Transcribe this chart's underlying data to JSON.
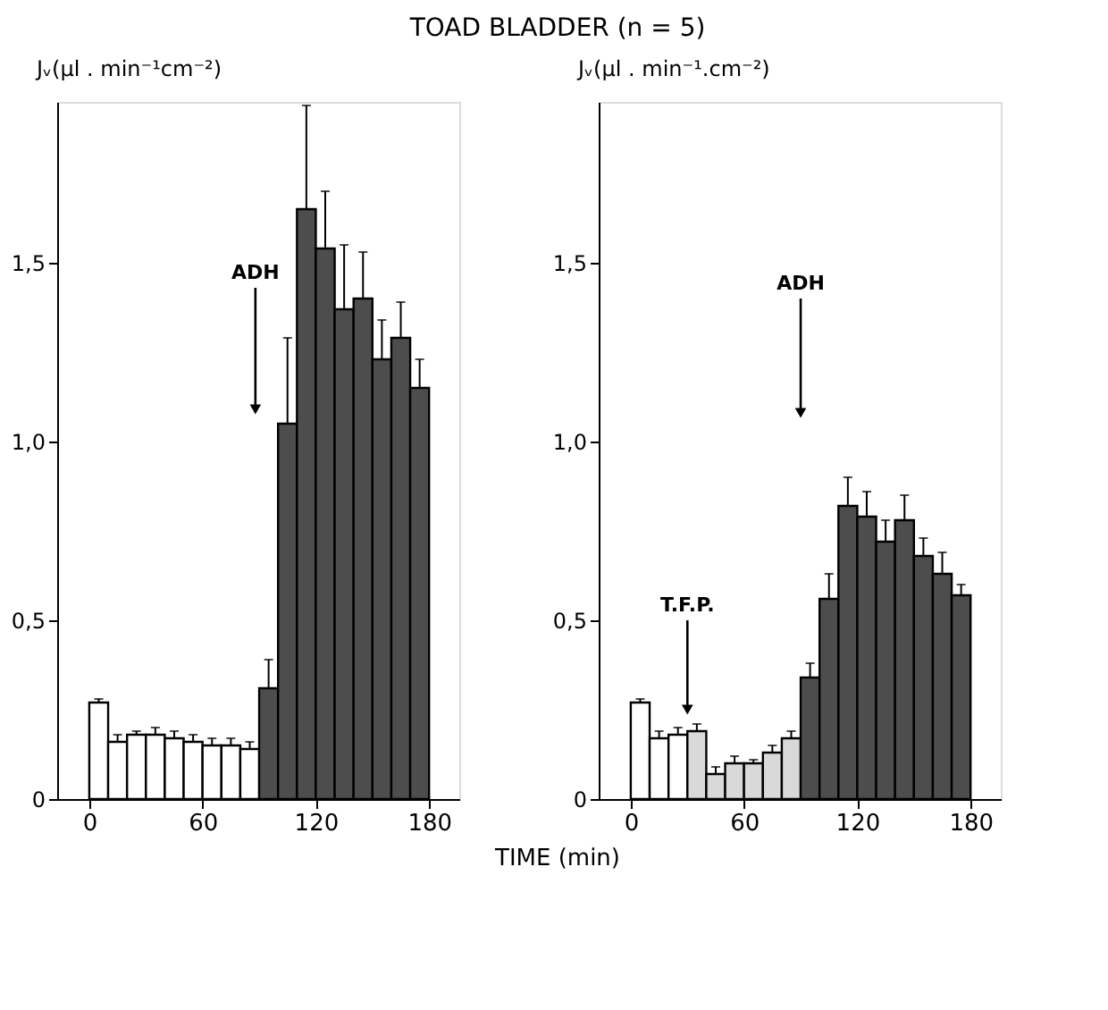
{
  "chart_data": [
    {
      "type": "bar",
      "title": "TOAD BLADDER (n = 5)",
      "xlabel": "TIME (min)",
      "ylabel": "Jᵥ(µl . min⁻¹cm⁻²)",
      "x": [
        5,
        15,
        25,
        35,
        45,
        55,
        65,
        75,
        85,
        95,
        105,
        115,
        125,
        135,
        145,
        155,
        165,
        175
      ],
      "values": [
        0.27,
        0.16,
        0.18,
        0.18,
        0.17,
        0.16,
        0.15,
        0.15,
        0.14,
        0.31,
        1.05,
        1.65,
        1.54,
        1.37,
        1.4,
        1.23,
        1.29,
        1.15
      ],
      "errors": [
        [
          0.27,
          0.28
        ],
        [
          0.16,
          0.18
        ],
        [
          0.18,
          0.19
        ],
        [
          0.18,
          0.2
        ],
        [
          0.17,
          0.19
        ],
        [
          0.16,
          0.18
        ],
        [
          0.15,
          0.17
        ],
        [
          0.15,
          0.17
        ],
        [
          0.14,
          0.16
        ],
        [
          0.31,
          0.39
        ],
        [
          1.05,
          1.29
        ],
        [
          1.65,
          1.94
        ],
        [
          1.54,
          1.7
        ],
        [
          1.37,
          1.55
        ],
        [
          1.4,
          1.53
        ],
        [
          1.23,
          1.34
        ],
        [
          1.29,
          1.39
        ],
        [
          1.15,
          1.23
        ]
      ],
      "colors": [
        "#ffffff",
        "#ffffff",
        "#ffffff",
        "#ffffff",
        "#ffffff",
        "#ffffff",
        "#ffffff",
        "#ffffff",
        "#ffffff",
        "#4d4d4d",
        "#4d4d4d",
        "#4d4d4d",
        "#4d4d4d",
        "#4d4d4d",
        "#4d4d4d",
        "#4d4d4d",
        "#4d4d4d",
        "#4d4d4d"
      ],
      "annotations": [
        "ADH"
      ],
      "xlim": [
        -17,
        196
      ],
      "xticks": [
        0,
        60,
        120,
        180
      ],
      "ylim": [
        0,
        1.95
      ],
      "yticks": [
        0,
        {
          "value": 0.5,
          "label": "0,5"
        },
        {
          "value": 1.0,
          "label": "1,0"
        },
        {
          "value": 1.5,
          "label": "1,5"
        }
      ],
      "grid": false
    },
    {
      "type": "bar",
      "ylabel": "Jᵥ(µl . min⁻¹.cm⁻²)",
      "x": [
        5,
        15,
        25,
        35,
        45,
        55,
        65,
        75,
        85,
        95,
        105,
        115,
        125,
        135,
        145,
        155,
        165,
        175
      ],
      "values": [
        0.27,
        0.17,
        0.18,
        0.19,
        0.07,
        0.1,
        0.1,
        0.13,
        0.17,
        0.34,
        0.56,
        0.82,
        0.79,
        0.72,
        0.78,
        0.68,
        0.63,
        0.57
      ],
      "errors": [
        [
          0.27,
          0.28
        ],
        [
          0.17,
          0.19
        ],
        [
          0.18,
          0.2
        ],
        [
          0.19,
          0.21
        ],
        [
          0.07,
          0.09
        ],
        [
          0.1,
          0.12
        ],
        [
          0.1,
          0.11
        ],
        [
          0.13,
          0.15
        ],
        [
          0.17,
          0.19
        ],
        [
          0.34,
          0.38
        ],
        [
          0.56,
          0.63
        ],
        [
          0.82,
          0.9
        ],
        [
          0.79,
          0.86
        ],
        [
          0.72,
          0.78
        ],
        [
          0.78,
          0.85
        ],
        [
          0.68,
          0.73
        ],
        [
          0.63,
          0.69
        ],
        [
          0.57,
          0.6
        ]
      ],
      "colors": [
        "#ffffff",
        "#ffffff",
        "#ffffff",
        "#d9d9d9",
        "#d9d9d9",
        "#d9d9d9",
        "#d9d9d9",
        "#d9d9d9",
        "#d9d9d9",
        "#4d4d4d",
        "#4d4d4d",
        "#4d4d4d",
        "#4d4d4d",
        "#4d4d4d",
        "#4d4d4d",
        "#4d4d4d",
        "#4d4d4d",
        "#4d4d4d"
      ],
      "annotations": [
        "T.F.P.",
        "ADH"
      ],
      "xlim": [
        -17,
        196
      ],
      "xticks": [
        0,
        60,
        120,
        180
      ],
      "ylim": [
        0,
        1.95
      ],
      "yticks": [
        0,
        {
          "value": 0.5,
          "label": "0,5"
        },
        {
          "value": 1.0,
          "label": "1,0"
        },
        {
          "value": 1.5,
          "label": "1,5"
        }
      ],
      "grid": false
    }
  ]
}
